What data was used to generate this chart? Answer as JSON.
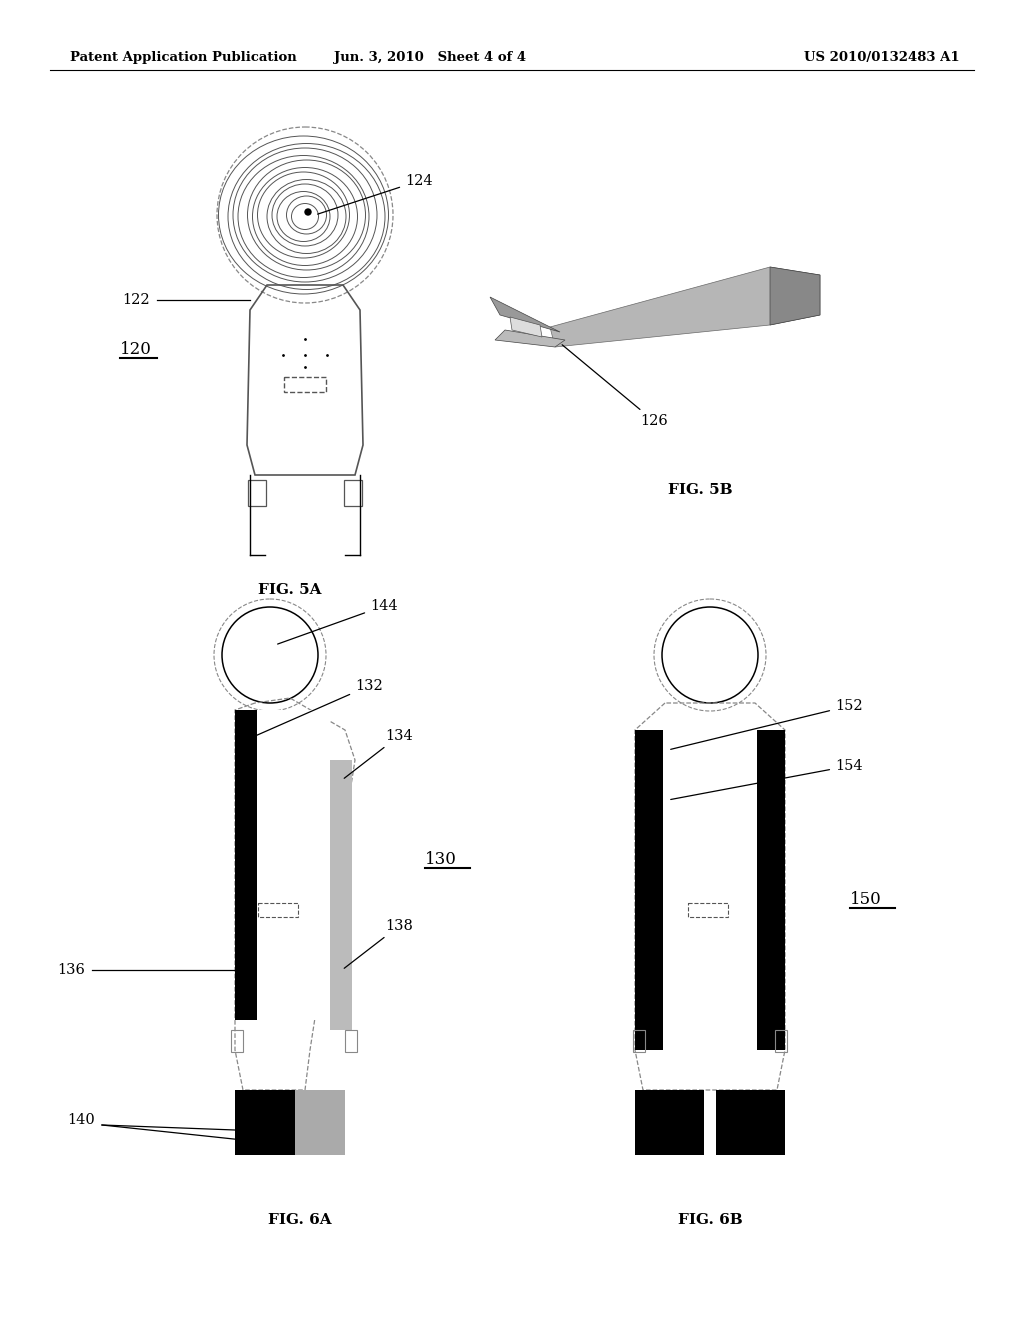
{
  "bg_color": "#ffffff",
  "header_left": "Patent Application Publication",
  "header_mid": "Jun. 3, 2010   Sheet 4 of 4",
  "header_right": "US 2010/0132483 A1",
  "fig5a_label": "FIG. 5A",
  "fig5b_label": "FIG. 5B",
  "fig6a_label": "FIG. 6A",
  "fig6b_label": "FIG. 6B"
}
